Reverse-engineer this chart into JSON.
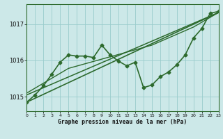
{
  "background_color": "#cce8e8",
  "grid_color": "#99cccc",
  "line_color": "#2d6a2d",
  "title": "Graphe pression niveau de la mer (hPa)",
  "ylim": [
    1014.6,
    1017.55
  ],
  "xlim": [
    0,
    23
  ],
  "yticks": [
    1015,
    1016,
    1017
  ],
  "xticks": [
    0,
    1,
    2,
    3,
    4,
    5,
    6,
    7,
    8,
    9,
    10,
    11,
    12,
    13,
    14,
    15,
    16,
    17,
    18,
    19,
    20,
    21,
    22,
    23
  ],
  "series": [
    {
      "x": [
        0,
        23
      ],
      "y": [
        1014.85,
        1017.32
      ],
      "has_markers": false,
      "linewidth": 1.2
    },
    {
      "x": [
        0,
        23
      ],
      "y": [
        1015.05,
        1017.32
      ],
      "has_markers": false,
      "linewidth": 1.1
    },
    {
      "x": [
        0,
        5,
        10,
        15,
        20,
        23
      ],
      "y": [
        1015.1,
        1015.78,
        1016.1,
        1016.42,
        1016.92,
        1017.32
      ],
      "has_markers": false,
      "linewidth": 1.0
    },
    {
      "x": [
        0,
        1,
        2,
        3,
        4,
        5,
        6,
        7,
        8,
        9,
        10,
        11,
        12,
        13,
        14,
        15,
        16,
        17,
        18,
        19,
        20,
        21,
        22,
        23
      ],
      "y": [
        1014.85,
        1015.05,
        1015.3,
        1015.62,
        1015.95,
        1016.15,
        1016.12,
        1016.12,
        1016.08,
        1016.42,
        1016.15,
        1015.98,
        1015.85,
        1015.95,
        1015.25,
        1015.32,
        1015.55,
        1015.68,
        1015.88,
        1016.15,
        1016.62,
        1016.88,
        1017.3,
        1017.35
      ],
      "has_markers": true,
      "linewidth": 1.2
    }
  ]
}
